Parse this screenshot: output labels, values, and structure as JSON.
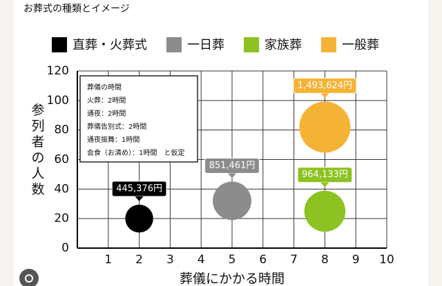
{
  "chart_data": {
    "type": "bubble",
    "title": "お葬式の種類とイメージ",
    "x_label": "葬儀にかかる時間",
    "y_label": "参列者の人数",
    "xlim": [
      0,
      10
    ],
    "xticks": [
      1,
      2,
      3,
      4,
      5,
      6,
      7,
      8,
      9,
      10
    ],
    "ylim": [
      0,
      120
    ],
    "yticks": [
      0,
      20,
      40,
      60,
      80,
      100,
      120
    ],
    "grid": true,
    "legend": "top",
    "annotation": [
      "葬儀の時間",
      "火葬：2時間",
      "通夜：2時間",
      "葬儀告別式：2時間",
      "通夜振舞：1時間",
      "会食（お清め）：1時間　と仮定"
    ],
    "series": [
      {
        "name": "直葬・火葬式",
        "color": "#000000",
        "x": [
          2
        ],
        "values": [
          20
        ],
        "sizes": [
          445376
        ],
        "value_labels": [
          "445,376円"
        ]
      },
      {
        "name": "一日葬",
        "color": "#8c8c8c",
        "x": [
          5
        ],
        "values": [
          32
        ],
        "sizes": [
          851461
        ],
        "value_labels": [
          "851,461円"
        ]
      },
      {
        "name": "家族葬",
        "color": "#8cc221",
        "x": [
          8
        ],
        "values": [
          25
        ],
        "sizes": [
          964133
        ],
        "value_labels": [
          "964,133円"
        ]
      },
      {
        "name": "一般葬",
        "color": "#f5b335",
        "x": [
          8
        ],
        "values": [
          82
        ],
        "sizes": [
          1493624
        ],
        "value_labels": [
          "1,493,624円"
        ]
      }
    ]
  }
}
